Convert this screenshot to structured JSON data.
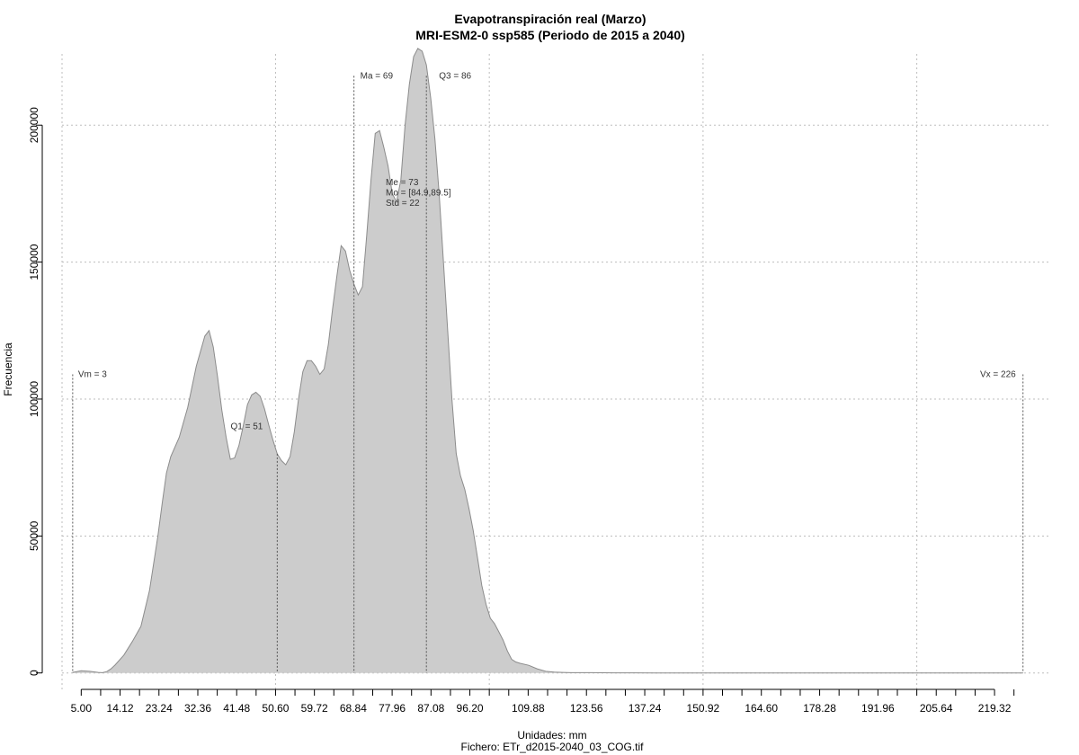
{
  "chart_data": {
    "type": "area",
    "title": "Evapotranspiración real (Marzo)",
    "subtitle": "MRI-ESM2-0 ssp585 (Periodo de 2015 a 2040)",
    "xlabel": "Unidades: mm",
    "caption": "Fichero: ETr_d2015-2040_03_COG.tif",
    "ylabel": "Frecuencia",
    "xlim": [
      0.5,
      232.6
    ],
    "ylim": [
      -6000,
      226000
    ],
    "x_ticks": [
      5.0,
      14.12,
      23.24,
      32.36,
      41.48,
      50.6,
      59.72,
      68.84,
      77.96,
      87.08,
      96.2,
      109.88,
      123.56,
      137.24,
      150.92,
      164.6,
      178.28,
      191.96,
      205.64,
      219.32
    ],
    "x_tick_labels": [
      "5.00",
      "14.12",
      "23.24",
      "32.36",
      "41.48",
      "50.60",
      "59.72",
      "68.84",
      "77.96",
      "87.08",
      "96.20",
      "109.88",
      "123.56",
      "137.24",
      "150.92",
      "164.60",
      "178.28",
      "191.96",
      "205.64",
      "219.32"
    ],
    "x_minor_ticks": [
      9.56,
      18.68,
      27.8,
      36.92,
      46.04,
      55.16,
      64.28,
      73.4,
      82.52,
      91.64,
      100.76,
      105.32,
      114.44,
      119.0,
      128.12,
      132.68,
      141.8,
      146.36,
      155.48,
      160.04,
      169.16,
      173.72,
      182.84,
      187.4,
      196.52,
      201.08,
      210.2,
      214.76,
      223.88
    ],
    "y_ticks": [
      0,
      50000,
      100000,
      150000,
      200000
    ],
    "y_tick_labels": [
      "0",
      "50000",
      "100000",
      "150000",
      "200000"
    ],
    "grid": true,
    "grid_x": [
      0.5,
      50.6,
      100.76,
      150.92,
      201.08
    ],
    "grid_y": [
      0,
      50000,
      100000,
      150000,
      200000
    ],
    "fill_color": "#cccccc",
    "line_color": "#8c8c8c",
    "x": [
      3,
      5,
      7,
      9,
      10,
      11,
      12,
      13,
      15,
      17,
      19,
      21,
      23,
      24,
      25,
      26,
      28,
      30,
      32,
      34,
      35,
      36,
      37,
      38,
      39,
      40,
      41,
      42,
      43,
      44,
      45,
      46,
      47,
      48,
      49,
      50,
      51,
      52,
      53,
      54,
      55,
      56,
      57,
      58,
      59,
      60,
      61,
      62,
      63,
      64,
      65,
      66,
      67,
      68,
      69,
      70,
      71,
      72,
      73,
      74,
      75,
      76,
      77,
      78,
      79,
      80,
      81,
      82,
      83,
      84,
      85,
      86,
      87,
      88,
      89,
      90,
      91,
      92,
      93,
      94,
      95,
      96,
      97,
      98,
      99,
      100,
      101,
      102,
      103,
      104,
      105,
      106,
      107,
      108,
      110,
      112,
      114,
      116,
      118,
      120,
      125,
      130,
      135,
      140,
      150,
      170,
      200,
      226
    ],
    "y": [
      200,
      800,
      600,
      200,
      100,
      500,
      1500,
      3000,
      6500,
      11500,
      17000,
      30000,
      50000,
      62000,
      73000,
      79000,
      86000,
      97000,
      112000,
      123000,
      125000,
      119000,
      108000,
      96000,
      86000,
      78000,
      78500,
      83000,
      90000,
      98000,
      101500,
      102500,
      101000,
      96500,
      90500,
      85000,
      80000,
      77500,
      76000,
      79000,
      88000,
      100000,
      110000,
      114000,
      114000,
      112000,
      109000,
      111000,
      120000,
      133000,
      145000,
      156000,
      154000,
      147000,
      142000,
      138000,
      141000,
      160000,
      180000,
      197000,
      198000,
      192000,
      185000,
      175000,
      172000,
      180000,
      200000,
      215000,
      225000,
      228000,
      227000,
      222000,
      210000,
      195000,
      175000,
      150000,
      125000,
      100000,
      80000,
      72000,
      67000,
      60000,
      52000,
      42000,
      32000,
      25000,
      20000,
      18000,
      15000,
      12000,
      8000,
      5000,
      4000,
      3500,
      2800,
      1500,
      600,
      300,
      200,
      100,
      100,
      50,
      30,
      20,
      10,
      10,
      10,
      10
    ],
    "annotations": {
      "vm": {
        "label": "Vm = 3",
        "x": 3,
        "y_top": 109000
      },
      "vx": {
        "label": "Vx = 226",
        "x": 226,
        "y_top": 109000
      },
      "q1": {
        "label": "Q1 = 51",
        "x": 51
      },
      "ma": {
        "label": "Ma = 69",
        "x": 69,
        "y_top": 218000
      },
      "q3": {
        "label": "Q3 = 86",
        "x": 86,
        "y_top": 218000
      },
      "stats": [
        "Me = 73",
        "Mo = [84.9,89.5]",
        "Std = 22"
      ]
    }
  }
}
